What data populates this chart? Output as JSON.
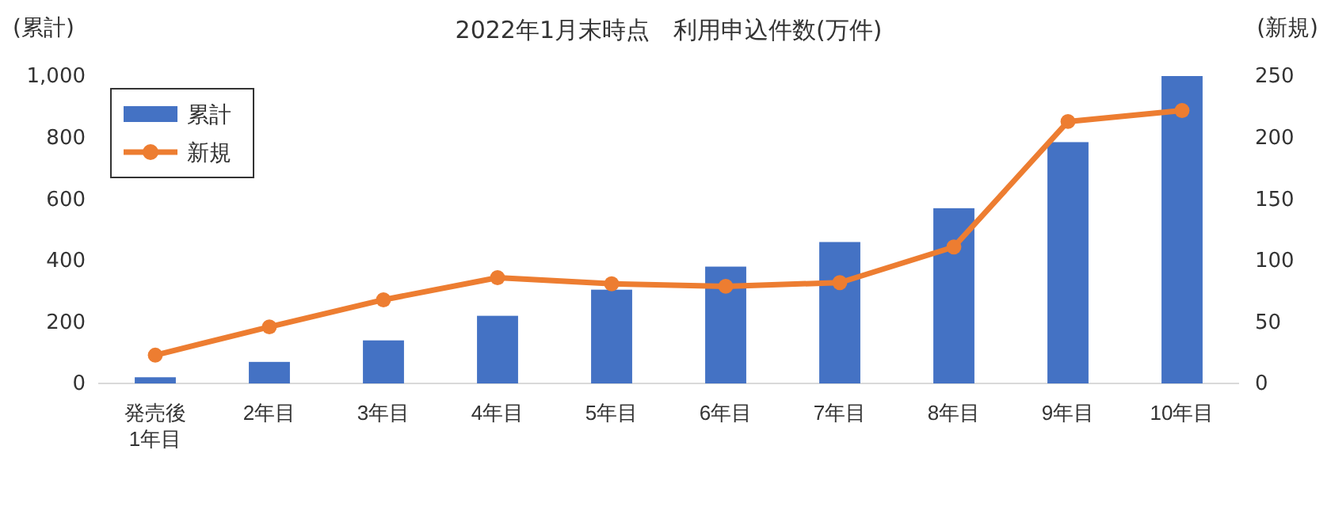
{
  "chart_data": {
    "type": "bar",
    "title": "2022年1月末時点　利用申込件数(万件)",
    "ylabel": "(累計)",
    "y2label": "(新規)",
    "categories": [
      "発売後\n1年目",
      "2年目",
      "3年目",
      "4年目",
      "5年目",
      "6年目",
      "7年目",
      "8年目",
      "9年目",
      "10年目"
    ],
    "series": [
      {
        "name": "累計",
        "color": "#4472c4",
        "values": [
          20,
          70,
          140,
          220,
          305,
          380,
          460,
          570,
          785,
          1000
        ]
      },
      {
        "name": "新規",
        "type": "line",
        "axis": "y2",
        "color": "#ed7d31",
        "marker": "circle",
        "values": [
          23,
          46,
          68,
          86,
          81,
          79,
          82,
          111,
          213,
          222
        ]
      }
    ],
    "ylim": [
      0,
      1000
    ],
    "yticks": [
      0,
      {
        "value": 200,
        "label": "200"
      },
      {
        "value": 400,
        "label": "400"
      },
      {
        "value": 600,
        "label": "600"
      },
      {
        "value": 800,
        "label": "800"
      },
      {
        "value": 1000,
        "label": "1,000"
      }
    ],
    "y2lim": [
      0,
      250
    ],
    "y2ticks": [
      0,
      50,
      100,
      150,
      200,
      250
    ],
    "legend": "top left",
    "grid": false
  }
}
